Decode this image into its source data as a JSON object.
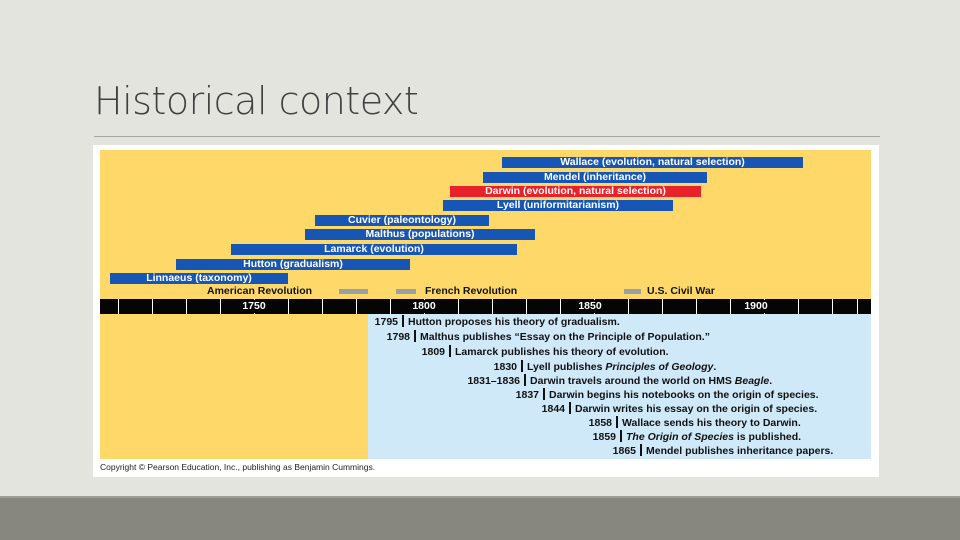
{
  "slide": {
    "title": "Historical context"
  },
  "timeline": {
    "bars": [
      {
        "label": "Wallace (evolution, natural selection)",
        "color": "#1756b5",
        "highlight": false
      },
      {
        "label": "Mendel (inheritance)",
        "color": "#1756b5",
        "highlight": false
      },
      {
        "label": "Darwin (evolution, natural selection)",
        "color": "#e8222a",
        "highlight": true
      },
      {
        "label": "Lyell (uniformitarianism)",
        "color": "#1756b5",
        "highlight": false
      },
      {
        "label": "Cuvier (paleontology)",
        "color": "#1756b5",
        "highlight": false
      },
      {
        "label": "Malthus (populations)",
        "color": "#1756b5",
        "highlight": false
      },
      {
        "label": "Lamarck (evolution)",
        "color": "#1756b5",
        "highlight": false
      },
      {
        "label": "Hutton (gradualism)",
        "color": "#1756b5",
        "highlight": false
      },
      {
        "label": "Linnaeus (taxonomy)",
        "color": "#1756b5",
        "highlight": false
      }
    ],
    "events": [
      {
        "label": "American Revolution"
      },
      {
        "label": "French Revolution"
      },
      {
        "label": "U.S. Civil War"
      }
    ],
    "axis_labels": [
      "1750",
      "1800",
      "1850",
      "1900"
    ],
    "entries": [
      {
        "year": "1795",
        "text": "Hutton proposes his theory of gradualism."
      },
      {
        "year": "1798",
        "text": "Malthus publishes “Essay on the Principle of Population.”"
      },
      {
        "year": "1809",
        "text": "Lamarck publishes his theory of evolution."
      },
      {
        "year": "1830",
        "pre": "Lyell publishes ",
        "italic": "Principles of Geology",
        "post": "."
      },
      {
        "year": "1831–1836",
        "pre": "Darwin travels around the world on HMS ",
        "italic": "Beagle",
        "post": "."
      },
      {
        "year": "1837",
        "text": "Darwin begins his notebooks on the origin of species."
      },
      {
        "year": "1844",
        "text": "Darwin writes his essay on the origin of species."
      },
      {
        "year": "1858",
        "text": "Wallace sends his theory to Darwin."
      },
      {
        "year": "1859",
        "pre": "",
        "italic": "The Origin of Species",
        "post": " is published."
      },
      {
        "year": "1865",
        "text": "Mendel publishes inheritance papers."
      }
    ],
    "copyright": "Copyright © Pearson Education, Inc., publishing as Benjamin Cummings."
  }
}
